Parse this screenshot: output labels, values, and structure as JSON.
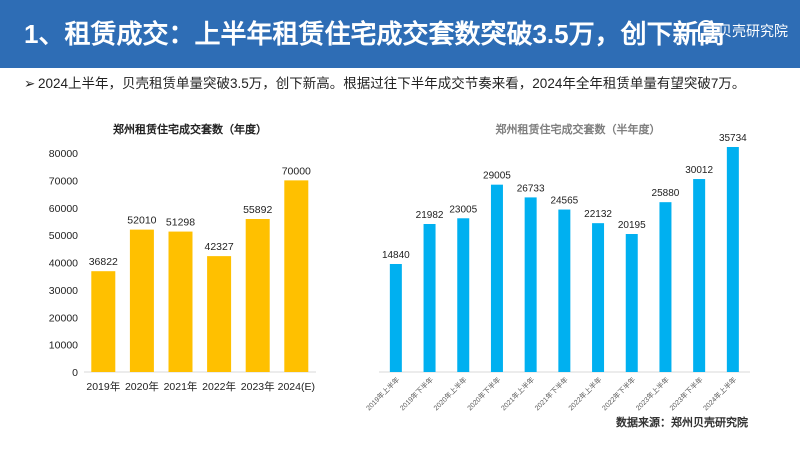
{
  "header": {
    "title": "1、租赁成交：上半年租赁住宅成交套数突破3.5万，创下新高",
    "logo_text": "贝壳研究院"
  },
  "bullet": {
    "marker": "➢",
    "text": "2024上半年，贝壳租赁单量突破3.5万，创下新高。根据过往下半年成交节奏来看，2024年全年租赁单量有望突破7万。"
  },
  "source": "数据来源：郑州贝壳研究院",
  "colors": {
    "header": "#2e6db5",
    "left_bar": "#ffc000",
    "right_bar": "#00b0f0"
  },
  "chart_data": [
    {
      "type": "bar",
      "title": "郑州租赁住宅成交套数（年度）",
      "categories": [
        "2019年",
        "2020年",
        "2021年",
        "2022年",
        "2023年",
        "2024(E)"
      ],
      "values": [
        36822,
        52010,
        51298,
        42327,
        55892,
        70000
      ],
      "ylim": [
        0,
        80000
      ],
      "yticks": [
        0,
        10000,
        20000,
        30000,
        40000,
        50000,
        60000,
        70000,
        80000
      ],
      "grid": false
    },
    {
      "type": "bar",
      "title": "郑州租赁住宅成交套数（半年度）",
      "categories": [
        "2019年上半年",
        "2019年下半年",
        "2020年上半年",
        "2020年下半年",
        "2021年上半年",
        "2021年下半年",
        "2022年上半年",
        "2022年下半年",
        "2023年上半年",
        "2023年下半年",
        "2024年上半年"
      ],
      "values": [
        14840,
        21982,
        23005,
        29005,
        26733,
        24565,
        22132,
        20195,
        25880,
        30012,
        35734
      ],
      "grid": false
    }
  ]
}
